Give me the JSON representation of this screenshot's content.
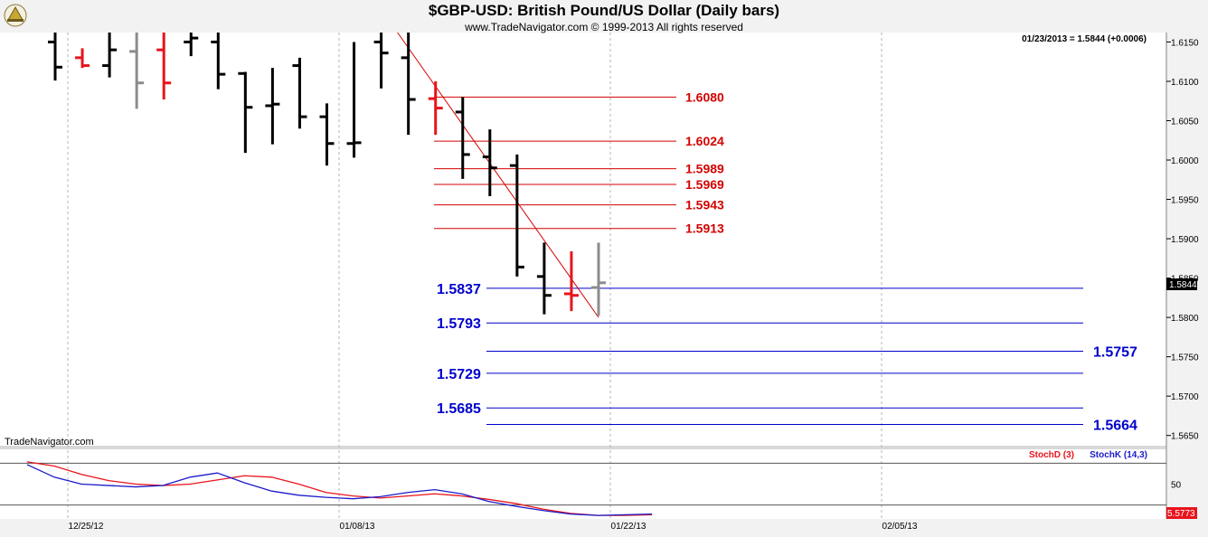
{
  "header": {
    "title": "$GBP-USD:  British Pound/US Dollar  (Daily bars)",
    "subtitle": "www.TradeNavigator.com © 1999-2013 All rights reserved",
    "last_readout": "01/23/2013 = 1.5844 (+0.0006)",
    "watermark": "TradeNavigator.com"
  },
  "colors": {
    "up_bar": "#000000",
    "down_bar": "#e8141c",
    "neutral_bar": "#8c8c8c",
    "resistance": "#d40000",
    "support": "#0000cc",
    "stochD": "#e8141c",
    "stochK": "#1a1acc"
  },
  "chart_data": [
    {
      "type": "ohlc",
      "title": "$GBP-USD:  British Pound/US Dollar  (Daily bars)",
      "ylim": [
        1.5637,
        1.6162
      ],
      "y_ticks": [
        "1.6150",
        "1.6100",
        "1.6050",
        "1.6000",
        "1.5950",
        "1.5900",
        "1.5850",
        "1.5800",
        "1.5750",
        "1.5700",
        "1.5650"
      ],
      "x_ticks": [
        "12/25/12",
        "01/08/13",
        "01/22/13",
        "02/05/13"
      ],
      "last_price_label": "1.5844",
      "bars": [
        {
          "x": 0,
          "color": "black",
          "h": 1.6165,
          "l": 1.6101,
          "o": 1.615,
          "c": 1.6118
        },
        {
          "x": 1,
          "color": "red",
          "h": 1.6142,
          "l": 1.6117,
          "o": 1.613,
          "c": 1.612
        },
        {
          "x": 2,
          "color": "black",
          "h": 1.6165,
          "l": 1.6105,
          "o": 1.612,
          "c": 1.614
        },
        {
          "x": 3,
          "color": "gray",
          "h": 1.6165,
          "l": 1.6065,
          "o": 1.6138,
          "c": 1.6098
        },
        {
          "x": 4,
          "color": "red",
          "h": 1.6165,
          "l": 1.6077,
          "o": 1.614,
          "c": 1.6098
        },
        {
          "x": 5,
          "color": "black",
          "h": 1.6165,
          "l": 1.6132,
          "o": 1.615,
          "c": 1.6155
        },
        {
          "x": 6,
          "color": "black",
          "h": 1.6165,
          "l": 1.609,
          "o": 1.615,
          "c": 1.6109
        },
        {
          "x": 7,
          "color": "black",
          "h": 1.6112,
          "l": 1.6009,
          "o": 1.611,
          "c": 1.6067
        },
        {
          "x": 8,
          "color": "black",
          "h": 1.6117,
          "l": 1.602,
          "o": 1.6069,
          "c": 1.6071
        },
        {
          "x": 9,
          "color": "black",
          "h": 1.613,
          "l": 1.604,
          "o": 1.612,
          "c": 1.6055
        },
        {
          "x": 10,
          "color": "black",
          "h": 1.6072,
          "l": 1.5993,
          "o": 1.6055,
          "c": 1.6021
        },
        {
          "x": 11,
          "color": "black",
          "h": 1.615,
          "l": 1.6003,
          "o": 1.6021,
          "c": 1.6022
        },
        {
          "x": 12,
          "color": "black",
          "h": 1.6165,
          "l": 1.6091,
          "o": 1.615,
          "c": 1.6136
        },
        {
          "x": 13,
          "color": "black",
          "h": 1.6165,
          "l": 1.6032,
          "o": 1.613,
          "c": 1.6077
        },
        {
          "x": 14,
          "color": "red",
          "h": 1.61,
          "l": 1.6032,
          "o": 1.6078,
          "c": 1.6066
        },
        {
          "x": 15,
          "color": "black",
          "h": 1.608,
          "l": 1.5976,
          "o": 1.6061,
          "c": 1.6007
        },
        {
          "x": 16,
          "color": "black",
          "h": 1.6039,
          "l": 1.5954,
          "o": 1.6004,
          "c": 1.599
        },
        {
          "x": 17,
          "color": "black",
          "h": 1.6007,
          "l": 1.5852,
          "o": 1.5993,
          "c": 1.5864
        },
        {
          "x": 18,
          "color": "black",
          "h": 1.5895,
          "l": 1.5804,
          "o": 1.5852,
          "c": 1.5828
        },
        {
          "x": 19,
          "color": "red",
          "h": 1.5884,
          "l": 1.5808,
          "o": 1.583,
          "c": 1.5828
        },
        {
          "x": 20,
          "color": "gray",
          "h": 1.5895,
          "l": 1.5802,
          "o": 1.5838,
          "c": 1.5844
        }
      ],
      "resistance_levels": [
        "1.6080",
        "1.6024",
        "1.5989",
        "1.5969",
        "1.5943",
        "1.5913"
      ],
      "support_levels": [
        "1.5837",
        "1.5793",
        "1.5757",
        "1.5729",
        "1.5685",
        "1.5664"
      ],
      "trendline": [
        {
          "x": 13,
          "y": 1.6162
        },
        {
          "x": 20,
          "y": 1.58
        }
      ]
    },
    {
      "type": "line",
      "ylim": [
        0,
        100
      ],
      "y_ticks": [
        "50"
      ],
      "ref_lines": [
        80,
        20
      ],
      "last_value_label": "5.5773",
      "series": [
        {
          "name": "StochD (3)",
          "values": [
            82,
            76,
            64,
            55,
            50,
            48,
            50,
            56,
            62,
            60,
            50,
            38,
            33,
            30,
            33,
            36,
            33,
            28,
            22,
            14,
            8,
            5,
            5,
            6
          ]
        },
        {
          "name": "StochK (14,3)",
          "values": [
            78,
            60,
            50,
            48,
            46,
            48,
            60,
            66,
            52,
            40,
            34,
            31,
            29,
            32,
            38,
            42,
            36,
            25,
            18,
            12,
            7,
            5,
            6,
            7
          ]
        }
      ]
    }
  ]
}
